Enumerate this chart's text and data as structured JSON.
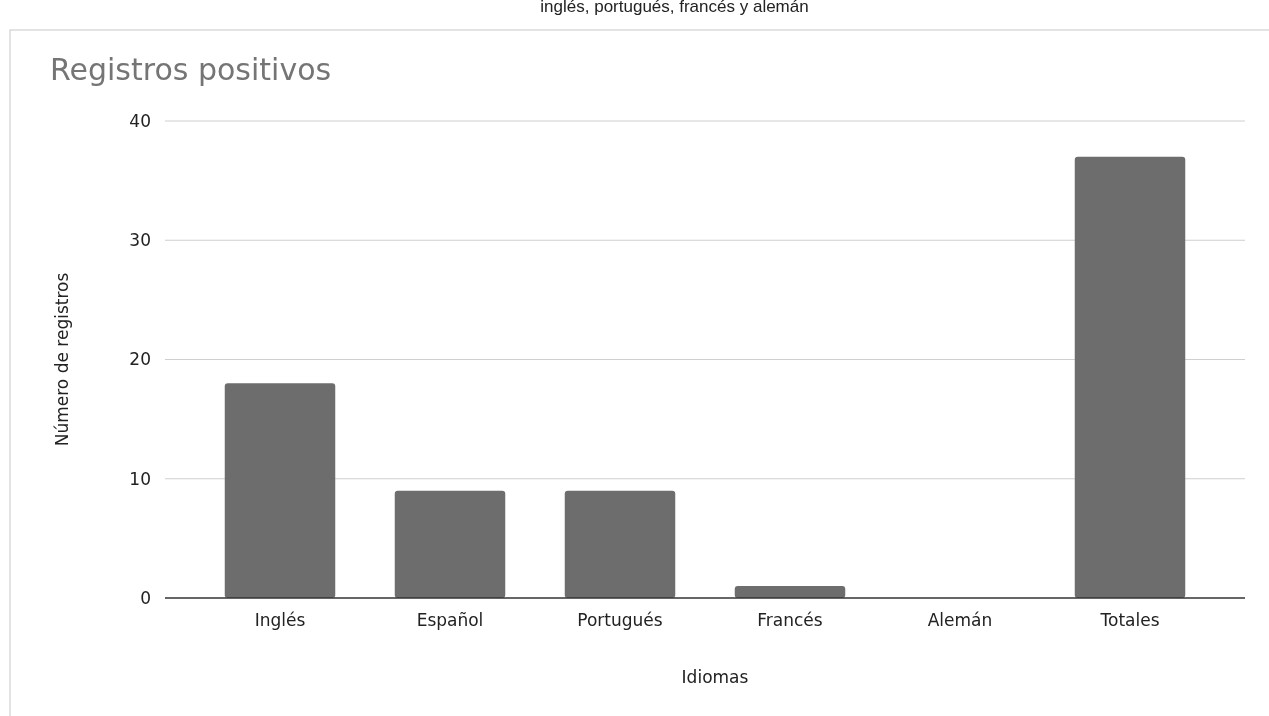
{
  "chart_data": {
    "type": "bar",
    "title": "Registros positivos",
    "xlabel": "Idiomas",
    "ylabel": "Número de registros",
    "annotations": [
      "inglés, portugués, francés y alemán"
    ],
    "categories": [
      "Inglés",
      "Español",
      "Portugués",
      "Francés",
      "Alemán",
      "Totales"
    ],
    "values": [
      18,
      9,
      9,
      1,
      0,
      37
    ],
    "color": "#6d6d6d",
    "ylim": [
      0,
      40
    ],
    "yticks": [
      0,
      10,
      20,
      30,
      40
    ],
    "grid": "y"
  }
}
